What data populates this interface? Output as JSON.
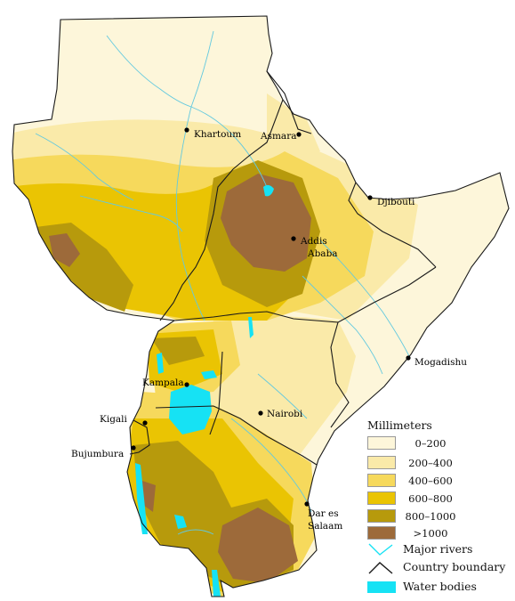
{
  "colors": {
    "c0": "#fdf6da",
    "c1": "#faeaa9",
    "c2": "#f6d95c",
    "c3": "#eac403",
    "c4": "#b79a0c",
    "c5": "#9d6a3a",
    "water": "#16e2f4",
    "river": "#63c9df",
    "boundary": "#1a1a1a"
  },
  "cities": [
    {
      "key": "khartoum",
      "name": "Khartoum"
    },
    {
      "key": "asmara",
      "name": "Asmara"
    },
    {
      "key": "djibouti",
      "name": "Djibouti"
    },
    {
      "key": "addis1",
      "name": "Addis"
    },
    {
      "key": "addis2",
      "name": "Ababa"
    },
    {
      "key": "mogadishu",
      "name": "Mogadishu"
    },
    {
      "key": "kampala",
      "name": "Kampala"
    },
    {
      "key": "nairobi",
      "name": "Nairobi"
    },
    {
      "key": "kigali",
      "name": "Kigali"
    },
    {
      "key": "bujumbura",
      "name": "Bujumbura"
    },
    {
      "key": "dar1",
      "name": "Dar es"
    },
    {
      "key": "dar2",
      "name": "Salaam"
    }
  ],
  "legend": {
    "title": "Millimeters",
    "classes": [
      {
        "label": "0–200"
      },
      {
        "label": "200–400"
      },
      {
        "label": "400–600"
      },
      {
        "label": "600–800"
      },
      {
        "label": "800–1000"
      },
      {
        "label": ">1000"
      }
    ],
    "symbols": [
      {
        "label": "Major rivers",
        "icon": "river-line-icon"
      },
      {
        "label": "Country boundary",
        "icon": "boundary-line-icon"
      },
      {
        "label": "Water bodies",
        "icon": "water-body-icon"
      }
    ]
  }
}
